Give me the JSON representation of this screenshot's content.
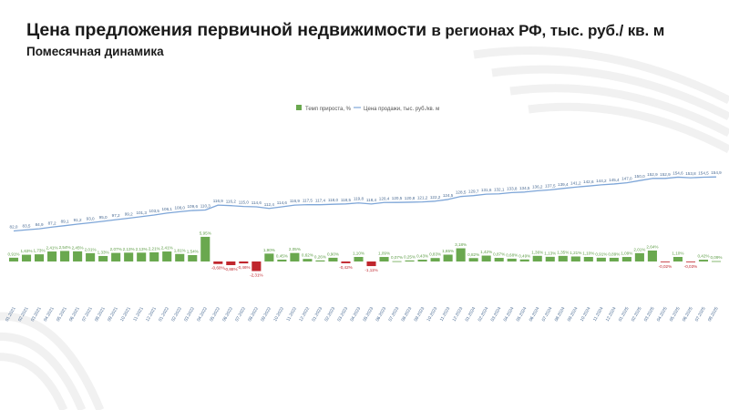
{
  "header": {
    "title_main": "Цена предложения первичной недвижимости",
    "title_suffix": "в регионах РФ, тыс. руб./ кв. м",
    "subtitle": "Помесячная динамика"
  },
  "colors": {
    "bar_positive": "#6aa84f",
    "bar_negative": "#c0262d",
    "line": "#7ea6d8",
    "label_positive": "#5c9c45",
    "label_negative": "#c0262d",
    "line_label": "#4a6b93",
    "axis_label": "#4a6b93"
  },
  "chart_data": {
    "type": "bar",
    "legend": {
      "placement": "top-center",
      "bar_series": "Темп прироста, %",
      "line_series": "Цена продажи, тыс. руб./кв. м"
    },
    "categories": [
      "01.2021",
      "02.2021",
      "03.2021",
      "04.2021",
      "05.2021",
      "06.2021",
      "07.2021",
      "08.2021",
      "09.2021",
      "10.2021",
      "11.2021",
      "12.2021",
      "01.2022",
      "02.2022",
      "03.2022",
      "04.2022",
      "05.2022",
      "06.2022",
      "07.2022",
      "08.2022",
      "09.2022",
      "10.2022",
      "11.2022",
      "12.2022",
      "01.2023",
      "02.2023",
      "03.2023",
      "04.2023",
      "05.2023",
      "06.2023",
      "07.2023",
      "08.2023",
      "09.2023",
      "10.2023",
      "11.2023",
      "12.2023",
      "01.2024",
      "02.2024",
      "03.2024",
      "04.2024",
      "05.2024",
      "06.2024",
      "07.2024",
      "08.2024",
      "09.2024",
      "10.2024",
      "11.2024",
      "12.2024",
      "01.2025",
      "02.2025",
      "03.2025",
      "04.2025",
      "05.2025",
      "06.2025",
      "07.2025",
      "08.2025"
    ],
    "series": [
      {
        "name": "Темп прироста, %",
        "type": "bar",
        "values": [
          0.91,
          1.63,
          1.73,
          2.41,
          2.54,
          2.45,
          2.01,
          1.33,
          2.07,
          2.13,
          2.13,
          2.21,
          2.41,
          1.81,
          1.54,
          5.95,
          -0.6,
          -0.88,
          -0.46,
          -2.31,
          1.9,
          0.45,
          2.05,
          0.62,
          0.26,
          0.9,
          -0.42,
          1.1,
          -1.11,
          1.09,
          0.07,
          0.25,
          0.43,
          0.83,
          1.65,
          3.18,
          0.82,
          1.42,
          0.87,
          0.68,
          0.49,
          1.36,
          1.13,
          1.35,
          1.21,
          1.1,
          0.91,
          0.89,
          1.09,
          2.01,
          2.64,
          -0.02,
          1.1,
          -0.03,
          0.42,
          0.09
        ],
        "labels": [
          "0,91%",
          "1,63%",
          "1,73%",
          "2,41%",
          "2,54%",
          "2,45%",
          "2,01%",
          "1,33%",
          "2,07%",
          "2,13%",
          "2,13%",
          "2,21%",
          "2,41%",
          "1,81%",
          "1,54%",
          "5,95%",
          "-0,60%",
          "-0,88%",
          "-0,46%",
          "-2,31%",
          "1,90%",
          "0,45%",
          "2,05%",
          "0,62%",
          "0,26%",
          "0,90%",
          "-0,42%",
          "1,10%",
          "-1,11%",
          "1,09%",
          "0,07%",
          "0,25%",
          "0,43%",
          "0,83%",
          "1,65%",
          "3,18%",
          "0,82%",
          "1,42%",
          "0,87%",
          "0,68%",
          "0,49%",
          "1,36%",
          "1,13%",
          "1,35%",
          "1,21%",
          "1,10%",
          "0,91%",
          "0,89%",
          "1,09%",
          "2,01%",
          "2,64%",
          "-0,02%",
          "1,10%",
          "-0,03%",
          "0,42%",
          "0,09%"
        ]
      },
      {
        "name": "Цена продажи, тыс. руб./кв. м",
        "type": "line",
        "values": [
          82.0,
          83.5,
          84.9,
          87.2,
          89.1,
          91.2,
          93.0,
          95.0,
          97.2,
          99.2,
          101.3,
          103.5,
          106.1,
          108.0,
          109.6,
          110.3,
          116.9,
          116.2,
          115.0,
          114.6,
          112.4,
          114.6,
          116.9,
          117.5,
          117.4,
          118.0,
          118.5,
          119.8,
          118.4,
          120.4,
          120.5,
          120.8,
          121.2,
          122.2,
          124.5,
          128.5,
          129.7,
          131.6,
          132.1,
          133.8,
          134.5,
          136.2,
          137.5,
          139.4,
          141.2,
          142.6,
          144.2,
          145.4,
          147.0,
          150.0,
          152.9,
          152.9,
          154.6,
          153.8,
          154.5,
          154.9
        ],
        "labels": [
          "82,0",
          "83,5",
          "84,9",
          "87,2",
          "89,1",
          "91,2",
          "93,0",
          "95,0",
          "97,2",
          "99,2",
          "101,3",
          "103,5",
          "106,1",
          "108,0",
          "109,6",
          "110,3",
          "116,9",
          "116,2",
          "115,0",
          "114,6",
          "112,4",
          "114,6",
          "116,9",
          "117,5",
          "117,4",
          "118,0",
          "118,5",
          "119,8",
          "118,4",
          "120,4",
          "120,5",
          "120,8",
          "121,2",
          "122,2",
          "124,5",
          "128,5",
          "129,7",
          "131,6",
          "132,1",
          "133,8",
          "134,5",
          "136,2",
          "137,5",
          "139,4",
          "141,2",
          "142,6",
          "144,2",
          "145,4",
          "147,0",
          "150,0",
          "152,9",
          "152,9",
          "154,6",
          "153,8",
          "154,5",
          "154,9"
        ]
      }
    ]
  }
}
